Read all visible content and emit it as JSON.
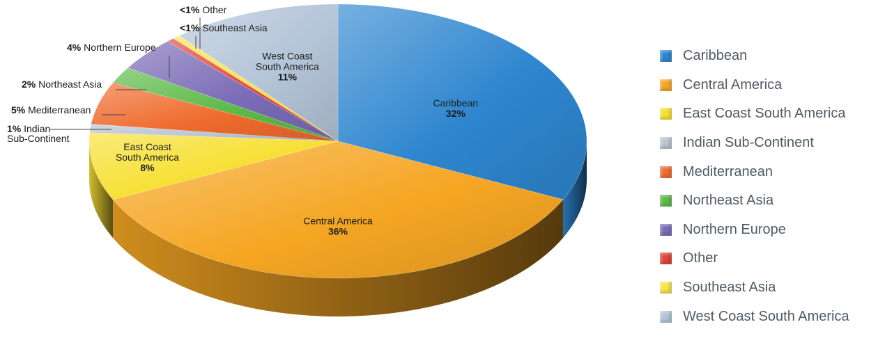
{
  "chart_data": {
    "type": "pie",
    "title": "",
    "slices": [
      {
        "name": "Caribbean",
        "value": 32,
        "pct_text": "32%",
        "color": "#2e86cf"
      },
      {
        "name": "Central America",
        "value": 36,
        "pct_text": "36%",
        "color": "#f5a623"
      },
      {
        "name": "East Coast South America",
        "value": 8,
        "pct_text": "8%",
        "color": "#f7e034"
      },
      {
        "name": "Indian Sub-Continent",
        "value": 1,
        "pct_text": "1%",
        "color": "#b9c5d3"
      },
      {
        "name": "Mediterranean",
        "value": 5,
        "pct_text": "5%",
        "color": "#ef6b2d"
      },
      {
        "name": "Northeast Asia",
        "value": 2,
        "pct_text": "2%",
        "color": "#5cba47"
      },
      {
        "name": "Northern Europe",
        "value": 4,
        "pct_text": "4%",
        "color": "#7a6cb7"
      },
      {
        "name": "Other",
        "value": 0.5,
        "pct_text": "<1%",
        "color": "#e0443a"
      },
      {
        "name": "Southeast Asia",
        "value": 0.5,
        "pct_text": "<1%",
        "color": "#f7e34a"
      },
      {
        "name": "West Coast South America",
        "value": 11,
        "pct_text": "11%",
        "color": "#b4c5d8"
      }
    ],
    "slice_labels": [
      {
        "slice": "Caribbean",
        "lines": [
          "Caribbean"
        ],
        "pct": "32%"
      },
      {
        "slice": "Central America",
        "lines": [
          "Central America"
        ],
        "pct": "36%"
      },
      {
        "slice": "East Coast South America",
        "lines": [
          "East Coast",
          "South America"
        ],
        "pct": "8%"
      },
      {
        "slice": "West Coast South America",
        "lines": [
          "West Coast",
          "South America"
        ],
        "pct": "11%"
      }
    ],
    "callouts": [
      {
        "slice": "Other",
        "pct": "<1%",
        "lines": [
          "Other"
        ]
      },
      {
        "slice": "Southeast Asia",
        "pct": "<1%",
        "lines": [
          "Southeast Asia"
        ]
      },
      {
        "slice": "Northern Europe",
        "pct": "4%",
        "lines": [
          "Northern Europe"
        ]
      },
      {
        "slice": "Northeast Asia",
        "pct": "2%",
        "lines": [
          "Northeast Asia"
        ]
      },
      {
        "slice": "Mediterranean",
        "pct": "5%",
        "lines": [
          "Mediterranean"
        ]
      },
      {
        "slice": "Indian Sub-Continent",
        "pct": "1%",
        "lines": [
          "Indian",
          "Sub-Continent"
        ]
      }
    ],
    "legend": {
      "position": "right",
      "items": [
        {
          "label": "Caribbean",
          "color": "#2e86cf"
        },
        {
          "label": "Central America",
          "color": "#f5a623"
        },
        {
          "label": "East Coast South America",
          "color": "#f7e034"
        },
        {
          "label": "Indian Sub-Continent",
          "color": "#b9c5d3"
        },
        {
          "label": "Mediterranean",
          "color": "#ef6b2d"
        },
        {
          "label": "Northeast Asia",
          "color": "#5cba47"
        },
        {
          "label": "Northern Europe",
          "color": "#7a6cb7"
        },
        {
          "label": "Other",
          "color": "#e0443a"
        },
        {
          "label": "Southeast Asia",
          "color": "#f7e34a"
        },
        {
          "label": "West Coast South America",
          "color": "#b4c5d8"
        }
      ]
    }
  }
}
